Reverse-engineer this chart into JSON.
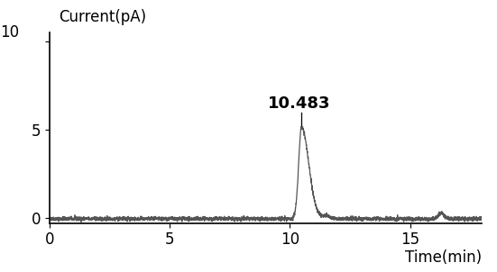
{
  "ylabel": "Current(pA)",
  "xlabel": "Time(min)",
  "ylim": [
    -0.3,
    10.5
  ],
  "xlim": [
    0,
    18
  ],
  "yticks": [
    0,
    5,
    10
  ],
  "xticks": [
    0,
    5,
    10,
    15
  ],
  "peak_time": 10.483,
  "peak_height": 5.2,
  "peak_label": "10.483",
  "small_peak_time": 16.3,
  "small_peak_height": 0.32,
  "line_color": "#555555",
  "baseline_noise_amplitude": 0.055,
  "background_color": "#ffffff",
  "annotation_fontsize": 13,
  "tick_fontsize": 12,
  "label_fontsize": 12
}
